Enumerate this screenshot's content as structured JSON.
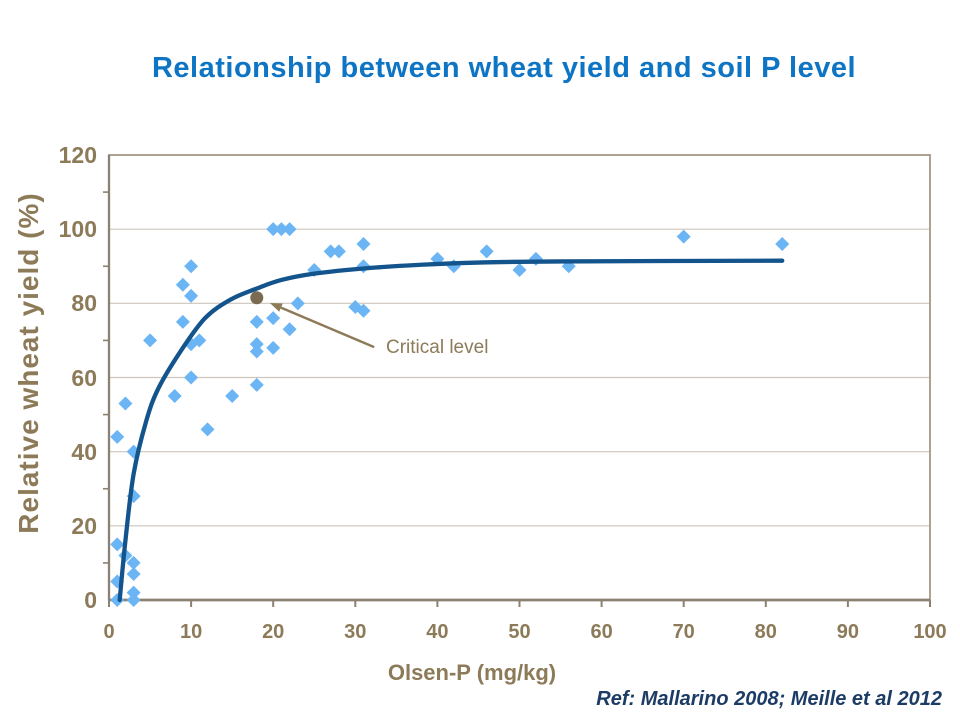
{
  "reference": "Ref: Mallarino 2008; Meille et al 2012",
  "chart_data": {
    "type": "scatter",
    "title": "Relationship between wheat yield and soil P level",
    "xlabel": "Olsen-P (mg/kg)",
    "ylabel": "Relative wheat yield (%)",
    "xlim": [
      0,
      100
    ],
    "ylim": [
      0,
      120
    ],
    "x_ticks": [
      0,
      10,
      20,
      30,
      40,
      50,
      60,
      70,
      80,
      90,
      100
    ],
    "y_ticks": [
      0,
      20,
      40,
      60,
      80,
      100,
      120
    ],
    "grid": "horizontal major gridlines only",
    "legend": "none",
    "series": [
      {
        "name": "observed relative wheat yield",
        "type": "scatter",
        "marker": "diamond",
        "points": [
          [
            1,
            0
          ],
          [
            3,
            0
          ],
          [
            3,
            2
          ],
          [
            1,
            5
          ],
          [
            3,
            7
          ],
          [
            3,
            10
          ],
          [
            2,
            12
          ],
          [
            1,
            15
          ],
          [
            3,
            28
          ],
          [
            3,
            40
          ],
          [
            1,
            44
          ],
          [
            2,
            53
          ],
          [
            5,
            70
          ],
          [
            8,
            55
          ],
          [
            9,
            75
          ],
          [
            9,
            85
          ],
          [
            10,
            60
          ],
          [
            10,
            69
          ],
          [
            11,
            70
          ],
          [
            10,
            82
          ],
          [
            10,
            90
          ],
          [
            12,
            46
          ],
          [
            15,
            55
          ],
          [
            18,
            58
          ],
          [
            18,
            67
          ],
          [
            18,
            69
          ],
          [
            18,
            75
          ],
          [
            20,
            68
          ],
          [
            20,
            76
          ],
          [
            22,
            73
          ],
          [
            23,
            80
          ],
          [
            20,
            100
          ],
          [
            21,
            100
          ],
          [
            22,
            100
          ],
          [
            25,
            89
          ],
          [
            27,
            94
          ],
          [
            28,
            94
          ],
          [
            30,
            79
          ],
          [
            31,
            78
          ],
          [
            31,
            90
          ],
          [
            31,
            96
          ],
          [
            40,
            92
          ],
          [
            42,
            90
          ],
          [
            46,
            94
          ],
          [
            50,
            89
          ],
          [
            52,
            92
          ],
          [
            56,
            90
          ],
          [
            70,
            98
          ],
          [
            82,
            96
          ]
        ]
      },
      {
        "name": "fitted response curve",
        "type": "line",
        "points": [
          [
            1.3,
            0
          ],
          [
            2,
            16
          ],
          [
            3,
            34
          ],
          [
            4.5,
            48
          ],
          [
            6,
            57
          ],
          [
            8.7,
            67
          ],
          [
            11.7,
            76
          ],
          [
            14.8,
            81
          ],
          [
            18,
            84
          ],
          [
            21,
            86.3
          ],
          [
            25,
            88
          ],
          [
            31,
            89.4
          ],
          [
            38,
            90.4
          ],
          [
            45,
            91
          ],
          [
            55,
            91.3
          ],
          [
            82,
            91.5
          ]
        ]
      }
    ],
    "annotation": {
      "label": "Critical level",
      "point": [
        18,
        81.5
      ],
      "arrow_tail": [
        32.3,
        68.2
      ],
      "arrow_tip": [
        19.6,
        80.1
      ]
    },
    "colors": {
      "background": "#FFFFFF",
      "title": "#0E74C4",
      "axis_text": "#8C7A58",
      "annotation_text": "#8C7A58",
      "axis_line": "#8C8170",
      "plot_border": "#A49786",
      "gridline": "#CDC6BB",
      "marker": "#6CB5F4",
      "curve": "#14548C",
      "critical_point": "#7A6B52",
      "arrow": "#8C7A58",
      "reference_text": "#1C3C66"
    }
  }
}
